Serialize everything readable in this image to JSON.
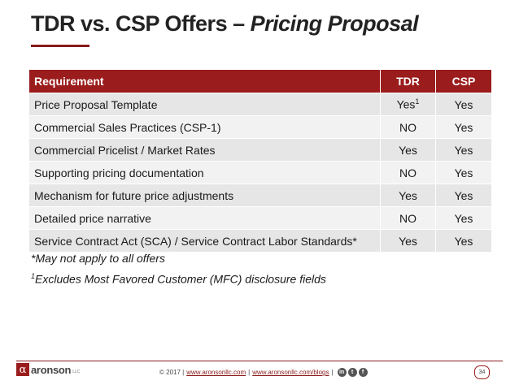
{
  "slide": {
    "title_part1": "TDR vs. CSP Offers – ",
    "title_part2": "Pricing Proposal"
  },
  "table": {
    "headers": {
      "requirement": "Requirement",
      "tdr": "TDR",
      "csp": "CSP"
    },
    "rows": [
      {
        "requirement": "Price Proposal Template",
        "tdr": "Yes",
        "tdr_sup": "1",
        "csp": "Yes"
      },
      {
        "requirement": "Commercial Sales Practices (CSP-1)",
        "tdr": "NO",
        "csp": "Yes"
      },
      {
        "requirement": "Commercial Pricelist / Market Rates",
        "tdr": "Yes",
        "csp": "Yes"
      },
      {
        "requirement": "Supporting pricing documentation",
        "tdr": "NO",
        "csp": "Yes"
      },
      {
        "requirement": "Mechanism for future price adjustments",
        "tdr": "Yes",
        "csp": "Yes"
      },
      {
        "requirement": "Detailed price narrative",
        "tdr": "NO",
        "csp": "Yes"
      },
      {
        "requirement": "Service Contract Act (SCA) / Service Contract Labor Standards*",
        "tdr": "Yes",
        "csp": "Yes"
      }
    ]
  },
  "notes": {
    "note1": "*May not apply to all offers",
    "note2_sup": "1",
    "note2": "Excludes Most Favored Customer (MFC) disclosure fields"
  },
  "footer": {
    "logo_mark": "α",
    "logo_text": "aronson",
    "logo_sub": "LLC",
    "copyright": "© 2017 |",
    "link1": "www.aronsonllc.com",
    "sep": "|",
    "link2": "www.aronsonllc.com/blogs",
    "sep2": "|",
    "social": [
      "in",
      "t",
      "f"
    ],
    "social_icons": [
      "linkedin-icon",
      "twitter-icon",
      "facebook-icon"
    ],
    "page_number": "34"
  }
}
